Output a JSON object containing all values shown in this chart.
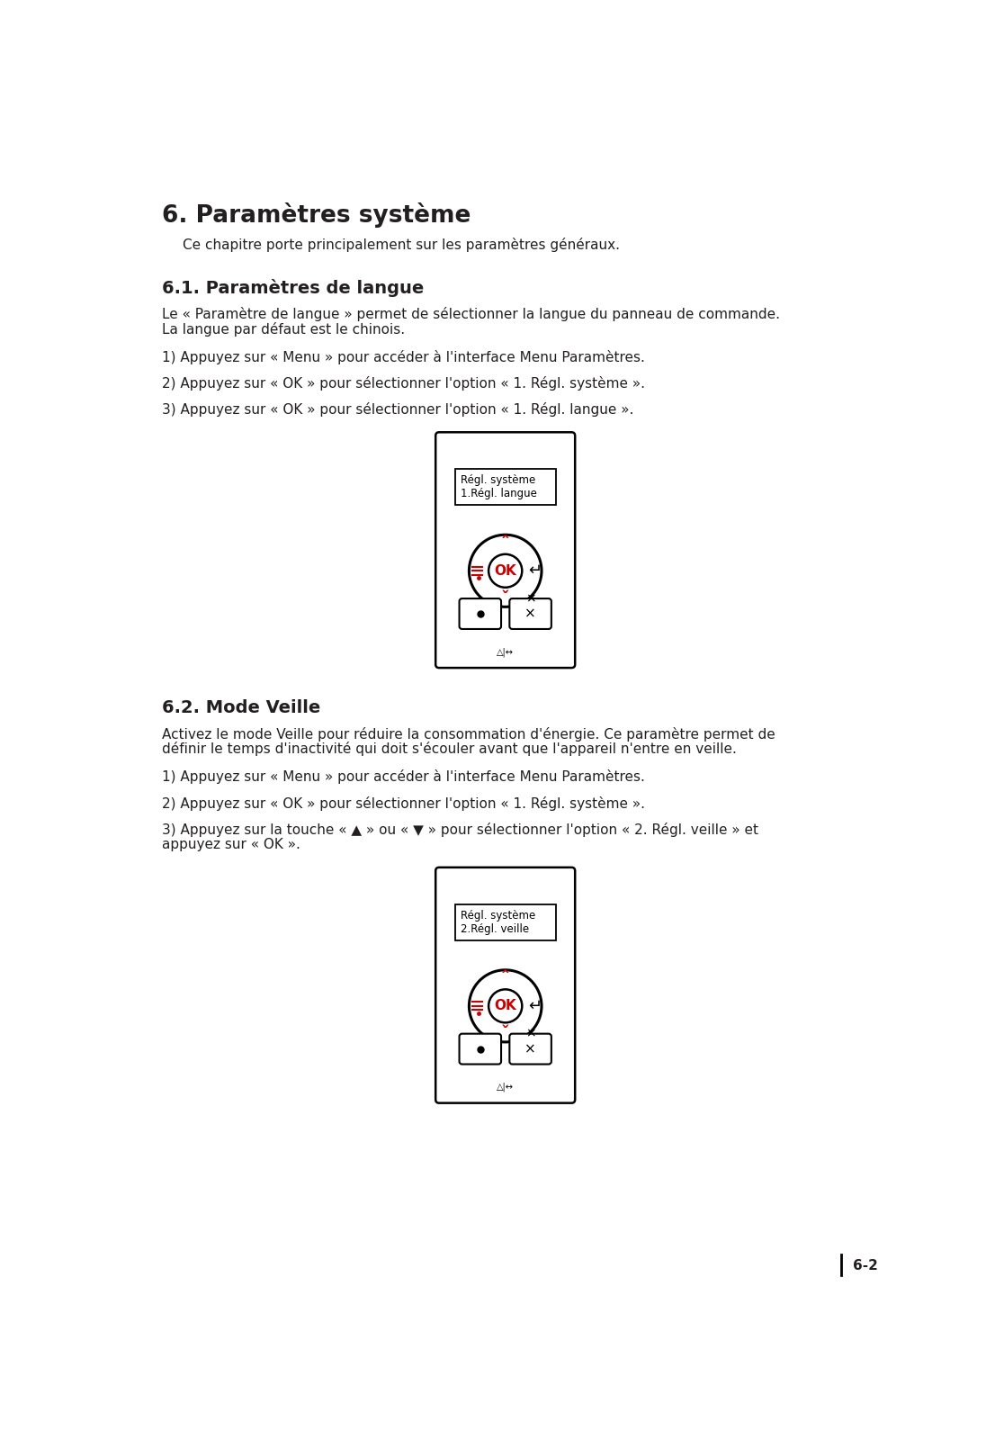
{
  "title": "6. Paramètres système",
  "intro": "Ce chapitre porte principalement sur les paramètres généraux.",
  "section1_title": "6.1. Paramètres de langue",
  "section1_body_1": "Le « Paramètre de langue » permet de sélectionner la langue du panneau de commande.",
  "section1_body_2": "La langue par défaut est le chinois.",
  "section1_step1": "1) Appuyez sur « Menu » pour accéder à l'interface Menu Paramètres.",
  "section1_step2": "2) Appuyez sur « OK » pour sélectionner l'option « 1. Régl. système ».",
  "section1_step3": "3) Appuyez sur « OK » pour sélectionner l'option « 1. Régl. langue ».",
  "device1_line1": "Régl. système",
  "device1_line2": "1.Régl. langue",
  "section2_title": "6.2. Mode Veille",
  "section2_body_1": "Activez le mode Veille pour réduire la consommation d'énergie. Ce paramètre permet de",
  "section2_body_2": "définir le temps d'inactivité qui doit s'écouler avant que l'appareil n'entre en veille.",
  "section2_step1": "1) Appuyez sur « Menu » pour accéder à l'interface Menu Paramètres.",
  "section2_step2": "2) Appuyez sur « OK » pour sélectionner l'option « 1. Régl. système ».",
  "section2_step3a": "3) Appuyez sur la touche « ▲ » ou « ▼ » pour sélectionner l'option « 2. Régl. veille » et",
  "section2_step3b": "appuyez sur « OK ».",
  "device2_line1": "Régl. système",
  "device2_line2": "2.Régl. veille",
  "page_number": "6-2",
  "bg_color": "#ffffff",
  "text_color": "#231f20",
  "red_color": "#cc0000",
  "title_fontsize": 19,
  "heading_fontsize": 14,
  "body_fontsize": 11,
  "small_fontsize": 8.5
}
